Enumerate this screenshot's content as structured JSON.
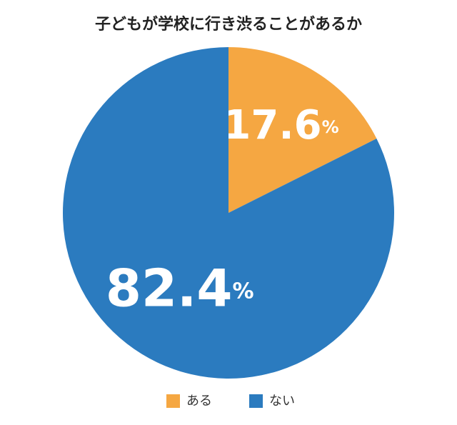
{
  "chart_data": {
    "type": "pie",
    "title": "子どもが学校に行き渋ることがあるか",
    "categories": [
      "ある",
      "ない"
    ],
    "values": [
      17.6,
      82.4
    ],
    "value_labels": [
      "17.6%",
      "82.4%"
    ],
    "colors": [
      "#f5a742",
      "#2b7bbf"
    ],
    "legend": "bottom"
  }
}
